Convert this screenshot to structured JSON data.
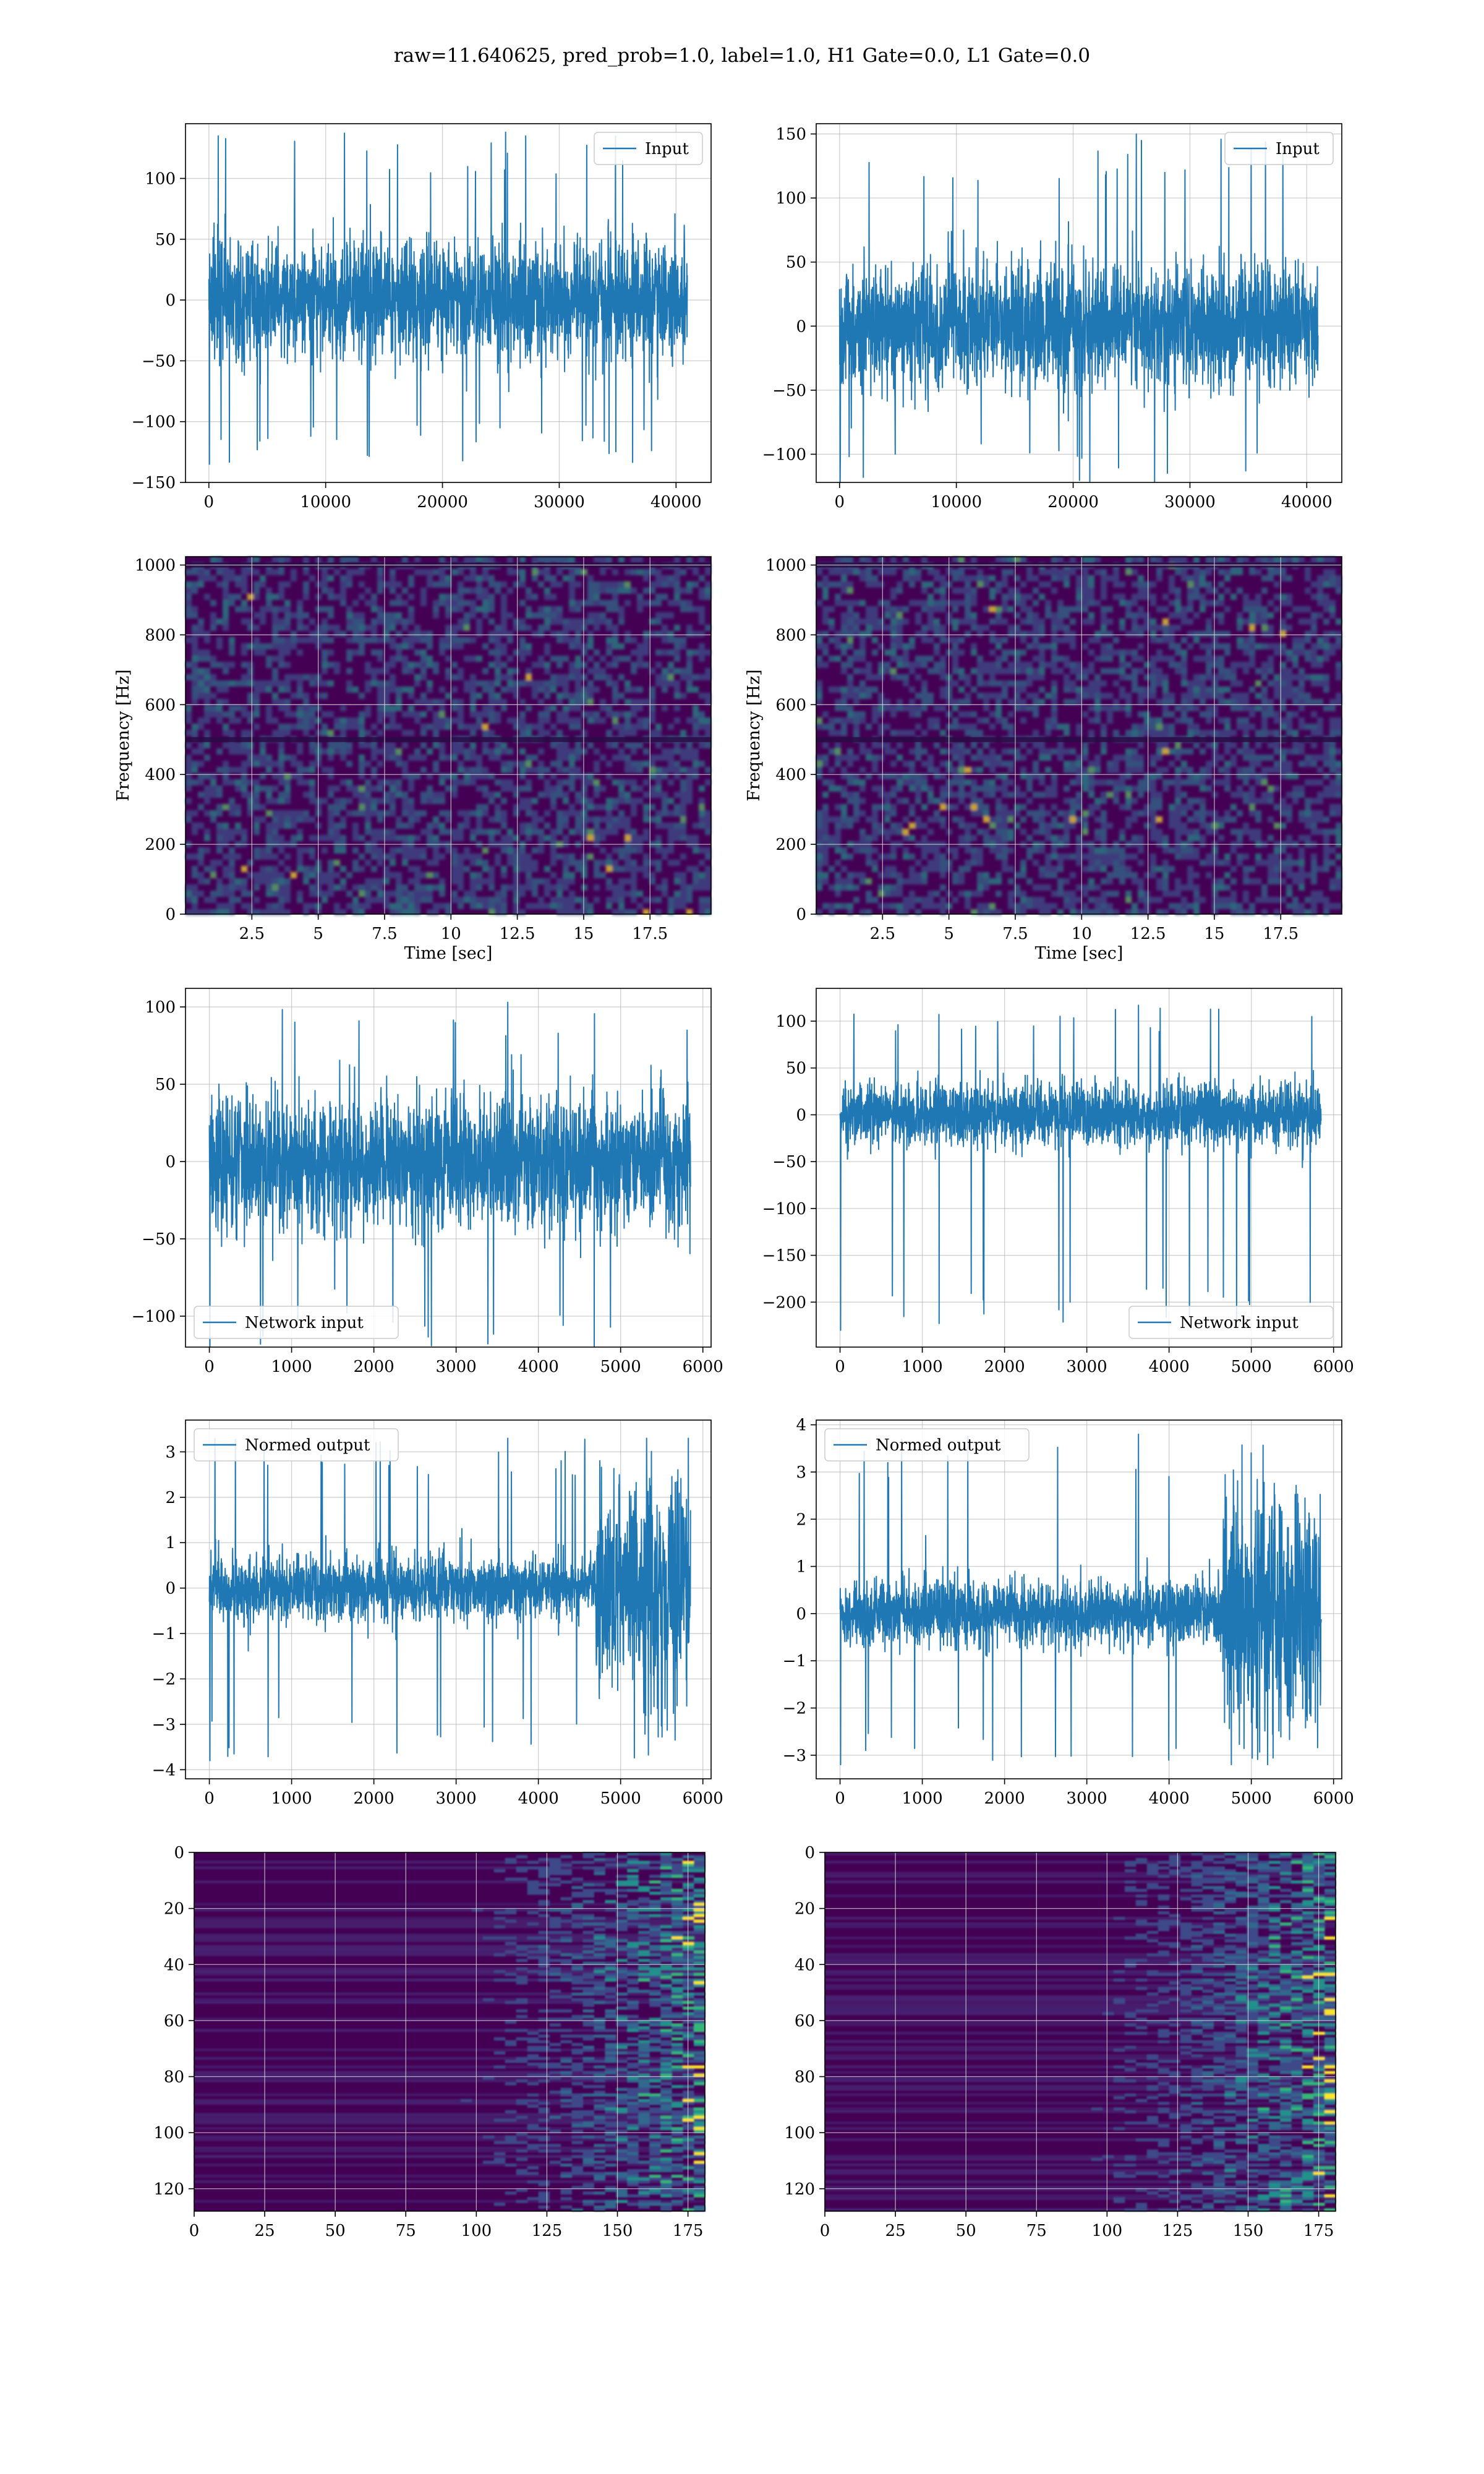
{
  "figure": {
    "suptitle": "raw=11.640625, pred_prob=1.0, label=1.0, H1 Gate=0.0, L1 Gate=0.0"
  },
  "colors": {
    "line": "#1f77b4",
    "grid": "#b0b0b0",
    "viridis_low": "#440154",
    "viridis_mid": "#21918c",
    "viridis_high": "#fde725"
  },
  "chart_data": [
    {
      "type": "line",
      "panel": "time-series-left",
      "grid": true,
      "series": [
        {
          "name": "Input",
          "n_samples": 40960,
          "y_min": -135,
          "y_max": 138,
          "typical_band": [
            -50,
            50
          ]
        }
      ],
      "legend": "upper right",
      "xlim": [
        -2000,
        43000
      ],
      "ylim": [
        -150,
        145
      ],
      "xticks": [
        0,
        10000,
        20000,
        30000,
        40000
      ],
      "yticks": [
        -150,
        -100,
        -50,
        0,
        50,
        100
      ]
    },
    {
      "type": "line",
      "panel": "time-series-right",
      "grid": true,
      "series": [
        {
          "name": "Input",
          "n_samples": 40960,
          "y_min": -122,
          "y_max": 150,
          "typical_band": [
            -50,
            50
          ]
        }
      ],
      "legend": "upper right",
      "xlim": [
        -2000,
        43000
      ],
      "ylim": [
        -122,
        158
      ],
      "xticks": [
        0,
        10000,
        20000,
        30000,
        40000
      ],
      "yticks": [
        -100,
        -50,
        0,
        50,
        100,
        150
      ]
    },
    {
      "type": "heatmap",
      "panel": "spectrogram-left",
      "grid": true,
      "colormap": "viridis",
      "xlabel": "Time [sec]",
      "ylabel": "Frequency [Hz]",
      "xlim": [
        0,
        19.8
      ],
      "ylim": [
        0,
        1024
      ],
      "xticks": [
        2.5,
        5.0,
        7.5,
        10.0,
        12.5,
        15.0,
        17.5
      ],
      "yticks": [
        0,
        200,
        400,
        600,
        800,
        1000
      ],
      "note_bands_hz": [
        500,
        1000
      ]
    },
    {
      "type": "heatmap",
      "panel": "spectrogram-right",
      "grid": true,
      "colormap": "viridis",
      "xlabel": "Time [sec]",
      "ylabel": "Frequency [Hz]",
      "xlim": [
        0,
        19.8
      ],
      "ylim": [
        0,
        1024
      ],
      "xticks": [
        2.5,
        5.0,
        7.5,
        10.0,
        12.5,
        15.0,
        17.5
      ],
      "yticks": [
        0,
        200,
        400,
        600,
        800,
        1000
      ],
      "note_bands_hz": [
        500,
        1000
      ]
    },
    {
      "type": "line",
      "panel": "network-input-left",
      "grid": true,
      "series": [
        {
          "name": "Network input",
          "n_samples": 5850,
          "y_min": -120,
          "y_max": 103,
          "typical_band": [
            -45,
            45
          ]
        }
      ],
      "legend": "lower left",
      "xlim": [
        -290,
        6100
      ],
      "ylim": [
        -120,
        112
      ],
      "xticks": [
        0,
        1000,
        2000,
        3000,
        4000,
        5000,
        6000
      ],
      "yticks": [
        -100,
        -50,
        0,
        50,
        100
      ]
    },
    {
      "type": "line",
      "panel": "network-input-right",
      "grid": true,
      "series": [
        {
          "name": "Network input",
          "n_samples": 5850,
          "y_min": -230,
          "y_max": 117,
          "typical_band": [
            -35,
            35
          ]
        }
      ],
      "legend": "lower right",
      "xlim": [
        -290,
        6100
      ],
      "ylim": [
        -248,
        135
      ],
      "xticks": [
        0,
        1000,
        2000,
        3000,
        4000,
        5000,
        6000
      ],
      "yticks": [
        -200,
        -150,
        -100,
        -50,
        0,
        50,
        100
      ]
    },
    {
      "type": "line",
      "panel": "normed-output-left",
      "grid": true,
      "series": [
        {
          "name": "Normed output",
          "n_samples": 5850,
          "y_min": -3.8,
          "y_max": 3.3,
          "typical_band": [
            -0.7,
            0.7
          ],
          "burst_start_x": 4700,
          "burst_band": [
            -2.0,
            2.0
          ]
        }
      ],
      "legend": "upper left",
      "xlim": [
        -290,
        6100
      ],
      "ylim": [
        -4.2,
        3.7
      ],
      "xticks": [
        0,
        1000,
        2000,
        3000,
        4000,
        5000,
        6000
      ],
      "yticks": [
        -4,
        -3,
        -2,
        -1,
        0,
        1,
        2,
        3
      ]
    },
    {
      "type": "line",
      "panel": "normed-output-right",
      "grid": true,
      "series": [
        {
          "name": "Normed output",
          "n_samples": 5850,
          "y_min": -3.2,
          "y_max": 3.8,
          "typical_band": [
            -0.7,
            0.7
          ],
          "burst_start_x": 4650,
          "burst_band": [
            -2.0,
            2.0
          ]
        }
      ],
      "legend": "upper left",
      "xlim": [
        -290,
        6100
      ],
      "ylim": [
        -3.5,
        4.1
      ],
      "xticks": [
        0,
        1000,
        2000,
        3000,
        4000,
        5000,
        6000
      ],
      "yticks": [
        -3,
        -2,
        -1,
        0,
        1,
        2,
        3,
        4
      ]
    },
    {
      "type": "heatmap",
      "panel": "activation-map-left",
      "grid": true,
      "colormap": "viridis",
      "xlim": [
        0,
        181
      ],
      "ylim": [
        128,
        0
      ],
      "xticks": [
        0,
        25,
        50,
        75,
        100,
        125,
        150,
        175
      ],
      "yticks": [
        0,
        20,
        40,
        60,
        80,
        100,
        120
      ],
      "active_region_x_from": 125
    },
    {
      "type": "heatmap",
      "panel": "activation-map-right",
      "grid": true,
      "colormap": "viridis",
      "xlim": [
        0,
        181
      ],
      "ylim": [
        128,
        0
      ],
      "xticks": [
        0,
        25,
        50,
        75,
        100,
        125,
        150,
        175
      ],
      "yticks": [
        0,
        20,
        40,
        60,
        80,
        100,
        120
      ],
      "active_region_x_from": 125
    }
  ]
}
